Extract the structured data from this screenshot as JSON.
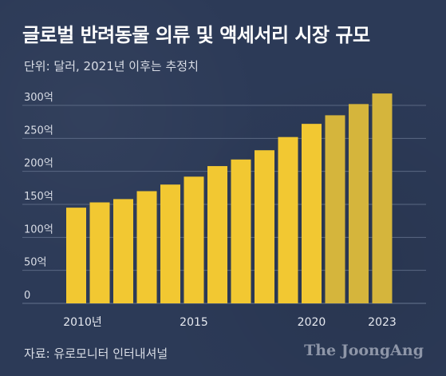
{
  "header": {
    "title": "글로벌 반려동물 의류 및 액세서리 시장 규모",
    "unit": "단위: 달러, 2021년 이후는 추정치"
  },
  "footer": {
    "source": "자료: 유로모니터 인터내셔널",
    "credit": "The JoongAng"
  },
  "chart_data": {
    "type": "bar",
    "categories": [
      "2010",
      "2011",
      "2012",
      "2013",
      "2014",
      "2015",
      "2016",
      "2017",
      "2018",
      "2019",
      "2020",
      "2021",
      "2022",
      "2023"
    ],
    "values": [
      145,
      153,
      158,
      170,
      180,
      192,
      208,
      218,
      232,
      252,
      272,
      285,
      302,
      318
    ],
    "estimate_from": "2021",
    "ylim": [
      0,
      300
    ],
    "yticks": [
      {
        "value": 0,
        "label": "0"
      },
      {
        "value": 50,
        "label": "50억"
      },
      {
        "value": 100,
        "label": "100억"
      },
      {
        "value": 150,
        "label": "150억"
      },
      {
        "value": 200,
        "label": "200억"
      },
      {
        "value": 250,
        "label": "250억"
      },
      {
        "value": 300,
        "label": "300억"
      }
    ],
    "xticks": [
      {
        "category": "2010",
        "label": "2010년"
      },
      {
        "category": "2015",
        "label": "2015"
      },
      {
        "category": "2020",
        "label": "2020"
      },
      {
        "category": "2023",
        "label": "2023"
      }
    ],
    "colors": {
      "actual": "#f2c832",
      "estimate": "#d5b53c",
      "grid": "#5a6883",
      "background": "#2c3a57"
    }
  }
}
